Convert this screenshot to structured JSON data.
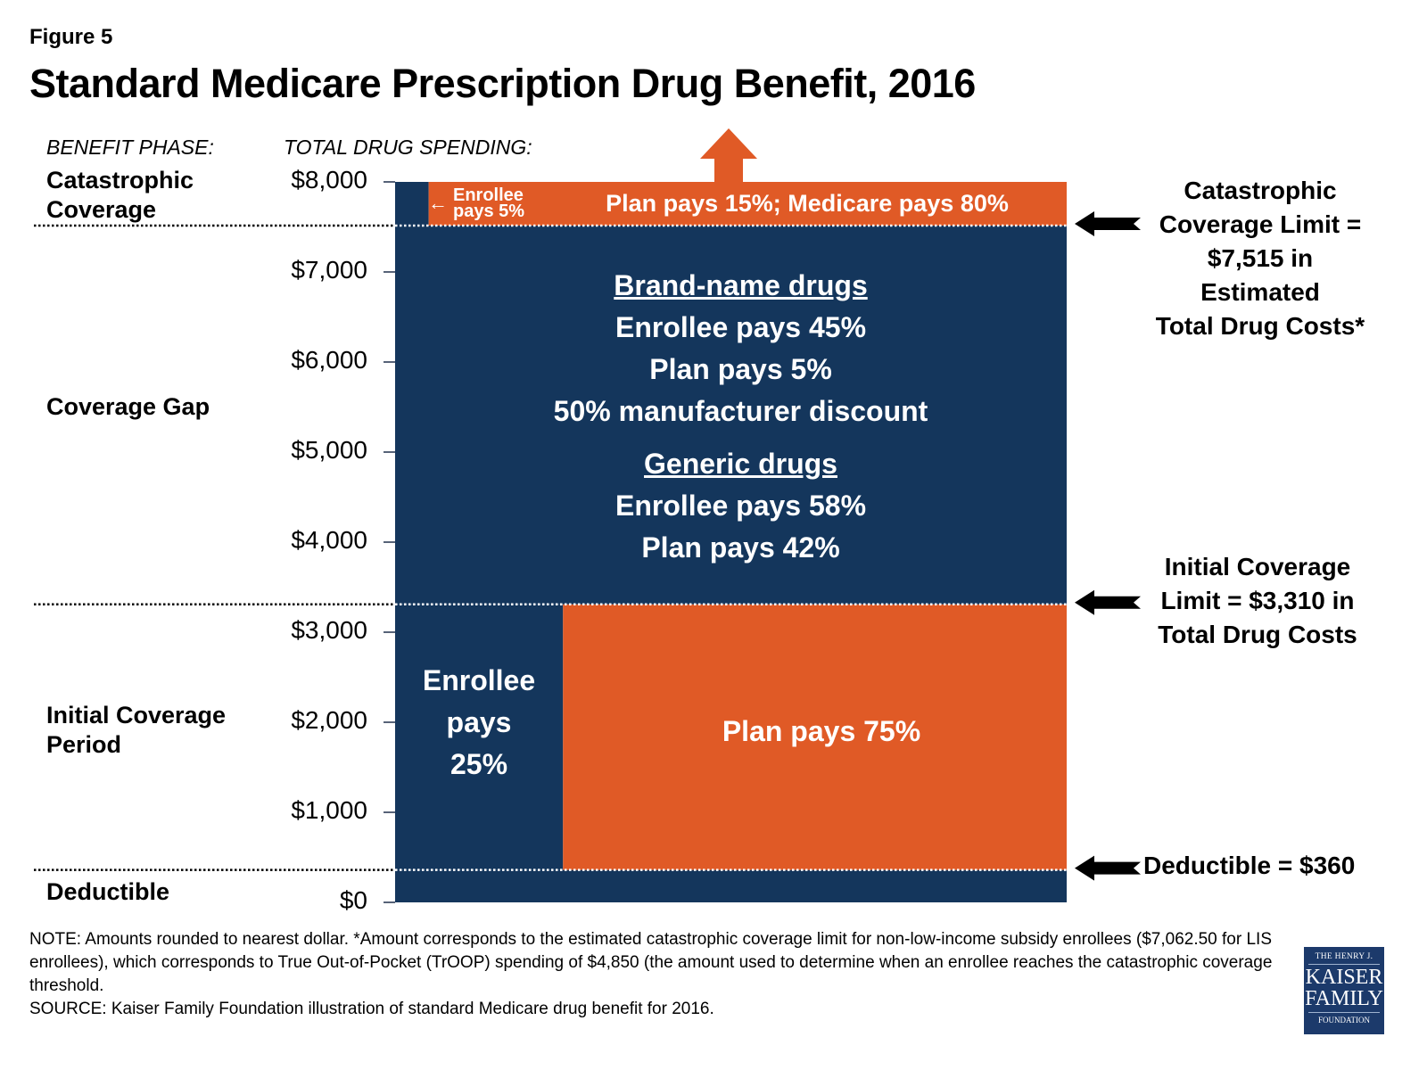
{
  "figure_label": "Figure 5",
  "title": "Standard Medicare Prescription Drug Benefit, 2016",
  "column_headers": {
    "benefit_phase": "BENEFIT PHASE:",
    "total_drug_spending": "TOTAL DRUG SPENDING:"
  },
  "phases": [
    {
      "label": "Catastrophic Coverage",
      "lines": [
        "Catastrophic",
        "Coverage"
      ]
    },
    {
      "label": "Coverage Gap",
      "lines": [
        "Coverage Gap"
      ]
    },
    {
      "label": "Initial Coverage Period",
      "lines": [
        "Initial Coverage",
        "Period"
      ]
    },
    {
      "label": "Deductible",
      "lines": [
        "Deductible"
      ]
    }
  ],
  "chart_data": {
    "type": "bar",
    "title": "Standard Medicare Prescription Drug Benefit, 2016",
    "ylabel": "TOTAL DRUG SPENDING:",
    "ylim": [
      0,
      8000
    ],
    "yticks": [
      0,
      1000,
      2000,
      3000,
      4000,
      5000,
      6000,
      7000,
      8000
    ],
    "ytick_labels": [
      "$0",
      "$1,000",
      "$2,000",
      "$3,000",
      "$4,000",
      "$5,000",
      "$6,000",
      "$7,000",
      "$8,000"
    ],
    "grid": false,
    "thresholds": [
      {
        "name": "Deductible",
        "value": 360
      },
      {
        "name": "Initial Coverage Limit",
        "value": 3310
      },
      {
        "name": "Catastrophic Coverage Limit",
        "value": 7515
      }
    ],
    "segments": [
      {
        "phase": "Deductible",
        "from": 0,
        "to": 360,
        "shares": [
          {
            "payer": "Enrollee",
            "pct": 100,
            "color": "#14365c"
          }
        ]
      },
      {
        "phase": "Initial Coverage Period",
        "from": 360,
        "to": 3310,
        "shares": [
          {
            "payer": "Enrollee",
            "pct": 25,
            "color": "#14365c",
            "label": [
              "Enrollee",
              "pays",
              "25%"
            ]
          },
          {
            "payer": "Plan",
            "pct": 75,
            "color": "#e05a26",
            "label": [
              "Plan pays 75%"
            ]
          }
        ]
      },
      {
        "phase": "Coverage Gap",
        "from": 3310,
        "to": 7515,
        "shares": [
          {
            "payer": "Enrollee/Plan/Manufacturer",
            "pct": 100,
            "color": "#14365c"
          }
        ]
      },
      {
        "phase": "Catastrophic Coverage",
        "from": 7515,
        "to": 8000,
        "open_ended": true,
        "shares": [
          {
            "payer": "Enrollee",
            "pct": 5,
            "color": "#14365c"
          },
          {
            "payer": "Plan + Medicare",
            "pct": 95,
            "color": "#e05a26",
            "label": [
              "Plan pays 15%; Medicare pays 80%"
            ]
          }
        ]
      }
    ]
  },
  "gap_text": {
    "brand_heading": "Brand-name drugs",
    "brand_lines": [
      "Enrollee pays 45%",
      "Plan pays 5%",
      "50% manufacturer discount"
    ],
    "generic_heading": "Generic drugs",
    "generic_lines": [
      "Enrollee pays 58%",
      "Plan pays 42%"
    ]
  },
  "catastrophic_enrollee_label": [
    "Enrollee",
    "pays 5%"
  ],
  "annotations": {
    "catastrophic": [
      "Catastrophic",
      "Coverage Limit =",
      "$7,515 in",
      "Estimated",
      "Total Drug Costs*"
    ],
    "initial": [
      "Initial Coverage",
      "Limit = $3,310 in",
      "Total Drug Costs"
    ],
    "deductible": [
      "Deductible = $360"
    ]
  },
  "colors": {
    "navy": "#14365c",
    "orange": "#e05a26"
  },
  "note": "NOTE: Amounts rounded to nearest dollar. *Amount corresponds to the estimated catastrophic coverage limit for non-low-income subsidy enrollees ($7,062.50 for LIS enrollees), which corresponds to True Out-of-Pocket (TrOOP) spending of $4,850 (the amount used to determine when an enrollee reaches the catastrophic coverage threshold.",
  "source": "SOURCE: Kaiser Family Foundation illustration of standard Medicare drug benefit for 2016.",
  "logo": {
    "line1": "THE HENRY J.",
    "line2": "KAISER",
    "line3": "FAMILY",
    "line4": "FOUNDATION"
  }
}
